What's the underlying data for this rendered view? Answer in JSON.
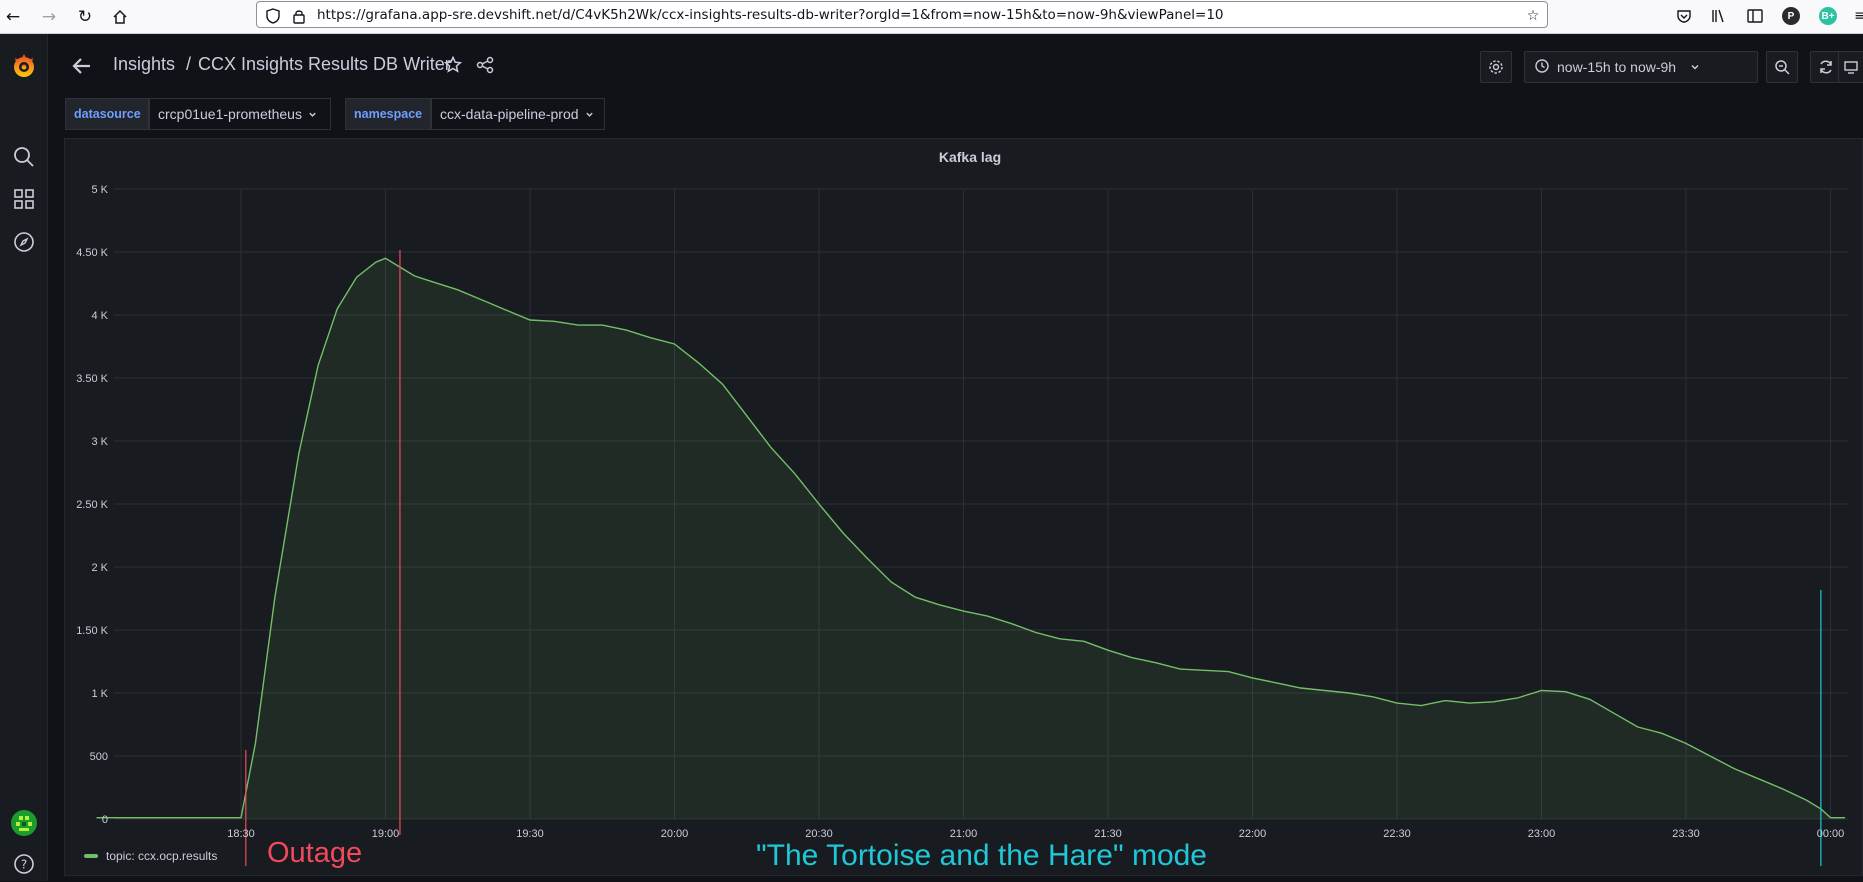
{
  "browser": {
    "url": "https://grafana.app-sre.devshift.net/d/C4vK5h2Wk/ccx-insights-results-db-writer?orgId=1&from=now-15h&to=now-9h&viewPanel=10",
    "profile_p": "P",
    "profile_b": "B+"
  },
  "header": {
    "breadcrumb_folder": "Insights",
    "breadcrumb_sep": "/",
    "breadcrumb_title": "CCX Insights Results DB Writer",
    "time_range": "now-15h to now-9h"
  },
  "variables": [
    {
      "label": "datasource",
      "value": "crcp01ue1-prometheus"
    },
    {
      "label": "namespace",
      "value": "ccx-data-pipeline-prod"
    }
  ],
  "panel": {
    "title": "Kafka lag",
    "legend": "topic: ccx.ocp.results",
    "annotation_outage": "Outage",
    "annotation_mode": "\"The Tortoise and the Hare\" mode"
  },
  "colors": {
    "series": "#73bf69",
    "outage": "#f2495c",
    "mode": "#1fc8d8"
  },
  "chart_data": {
    "type": "area",
    "title": "Kafka lag",
    "xlabel": "",
    "ylabel": "",
    "ylim": [
      0,
      5000
    ],
    "xlim": [
      "18:00",
      "00:05"
    ],
    "y_ticks": [
      "0",
      "500",
      "1 K",
      "1.50 K",
      "2 K",
      "2.50 K",
      "3 K",
      "3.50 K",
      "4 K",
      "4.50 K",
      "5 K"
    ],
    "x_ticks": [
      "18:30",
      "19:00",
      "19:30",
      "20:00",
      "20:30",
      "21:00",
      "21:30",
      "22:00",
      "22:30",
      "23:00",
      "23:30",
      "00:00"
    ],
    "grid": true,
    "legend_position": "bottom-left",
    "series": [
      {
        "name": "topic: ccx.ocp.results",
        "x": [
          "18:00",
          "18:28",
          "18:30",
          "18:33",
          "18:37",
          "18:42",
          "18:46",
          "18:50",
          "18:54",
          "18:58",
          "19:00",
          "19:03",
          "19:06",
          "19:10",
          "19:15",
          "19:20",
          "19:25",
          "19:30",
          "19:35",
          "19:40",
          "19:45",
          "19:50",
          "19:55",
          "20:00",
          "20:05",
          "20:10",
          "20:15",
          "20:20",
          "20:25",
          "20:30",
          "20:35",
          "20:40",
          "20:45",
          "20:50",
          "20:55",
          "21:00",
          "21:05",
          "21:10",
          "21:15",
          "21:20",
          "21:25",
          "21:30",
          "21:35",
          "21:40",
          "21:45",
          "21:50",
          "21:55",
          "22:00",
          "22:05",
          "22:10",
          "22:15",
          "22:20",
          "22:25",
          "22:30",
          "22:35",
          "22:40",
          "22:45",
          "22:50",
          "22:55",
          "23:00",
          "23:05",
          "23:10",
          "23:15",
          "23:20",
          "23:25",
          "23:30",
          "23:35",
          "23:40",
          "23:45",
          "23:50",
          "23:55",
          "23:58",
          "00:00",
          "00:03"
        ],
        "values": [
          10,
          10,
          10,
          600,
          1750,
          2900,
          3600,
          4050,
          4300,
          4420,
          4450,
          4380,
          4310,
          4260,
          4200,
          4120,
          4040,
          3960,
          3950,
          3920,
          3920,
          3880,
          3820,
          3770,
          3620,
          3450,
          3200,
          2950,
          2740,
          2500,
          2270,
          2070,
          1880,
          1760,
          1700,
          1650,
          1610,
          1550,
          1480,
          1430,
          1410,
          1340,
          1280,
          1240,
          1190,
          1180,
          1170,
          1120,
          1080,
          1040,
          1020,
          1000,
          970,
          920,
          900,
          940,
          920,
          930,
          960,
          1020,
          1010,
          950,
          840,
          730,
          680,
          600,
          500,
          400,
          320,
          240,
          150,
          80,
          10,
          10
        ]
      }
    ],
    "annotations": [
      {
        "time": "18:31",
        "text": "Outage",
        "color": "#f2495c"
      },
      {
        "time": "19:03",
        "text": "",
        "color": "#f2495c"
      },
      {
        "time": "23:58",
        "text": "\"The Tortoise and the Hare\" mode",
        "color": "#1fc8d8"
      }
    ]
  }
}
